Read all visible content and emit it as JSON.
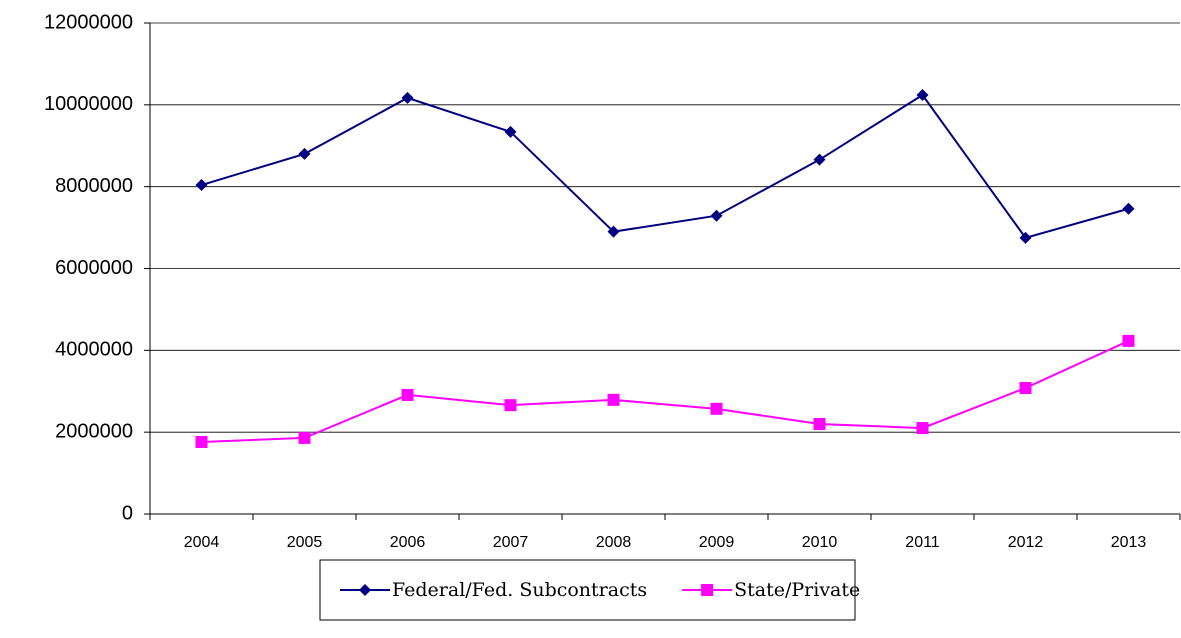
{
  "chart_data": {
    "type": "line",
    "categories": [
      "2004",
      "2005",
      "2006",
      "2007",
      "2008",
      "2009",
      "2010",
      "2011",
      "2012",
      "2013"
    ],
    "series": [
      {
        "name": "Federal/Fed. Subcontracts",
        "color": "#000080",
        "marker": "diamond",
        "values": [
          8040000,
          8800000,
          10170000,
          9340000,
          6900000,
          7290000,
          8660000,
          10240000,
          6750000,
          7460000
        ]
      },
      {
        "name": "State/Private",
        "color": "#ff00ff",
        "marker": "square",
        "values": [
          1760000,
          1860000,
          2910000,
          2660000,
          2790000,
          2570000,
          2200000,
          2100000,
          3080000,
          4230000
        ]
      }
    ],
    "ylim": [
      0,
      12000000
    ],
    "yticks": [
      0,
      2000000,
      4000000,
      6000000,
      8000000,
      10000000,
      12000000
    ],
    "grid": true,
    "legend": "bottom"
  }
}
